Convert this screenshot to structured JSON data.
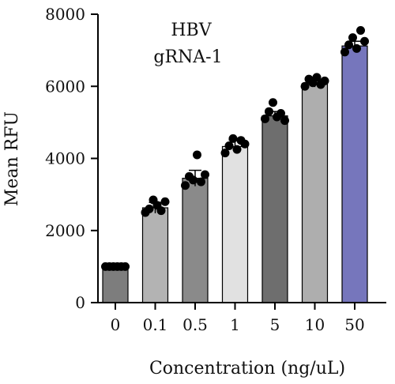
{
  "chart_data": {
    "type": "bar",
    "title": "",
    "annotation": [
      "HBV",
      "gRNA-1"
    ],
    "xlabel": "Concentration (ng/uL)",
    "ylabel": "Mean RFU",
    "ylim": [
      0,
      8000
    ],
    "yticks": [
      0,
      2000,
      4000,
      6000,
      8000
    ],
    "grid": false,
    "categories": [
      "0",
      "0.1",
      "0.5",
      "1",
      "5",
      "10",
      "50"
    ],
    "values": [
      1000,
      2630,
      3450,
      4330,
      5180,
      6080,
      7120
    ],
    "error": [
      30,
      150,
      220,
      180,
      120,
      100,
      130
    ],
    "bar_colors": [
      "#7d7d7d",
      "#b3b3b3",
      "#8a8a8a",
      "#e1e1e1",
      "#6e6e6e",
      "#aeaeae",
      "#7676bc"
    ],
    "points": [
      [
        1000,
        1000,
        1000,
        1000,
        1000,
        1000
      ],
      [
        2500,
        2600,
        2850,
        2700,
        2550,
        2800
      ],
      [
        3250,
        3500,
        3400,
        4100,
        3350,
        3550
      ],
      [
        4150,
        4350,
        4550,
        4250,
        4500,
        4400
      ],
      [
        5100,
        5300,
        5550,
        5150,
        5250,
        5050
      ],
      [
        6000,
        6200,
        6100,
        6250,
        6050,
        6150
      ],
      [
        6950,
        7150,
        7350,
        7050,
        7550,
        7250
      ]
    ]
  }
}
